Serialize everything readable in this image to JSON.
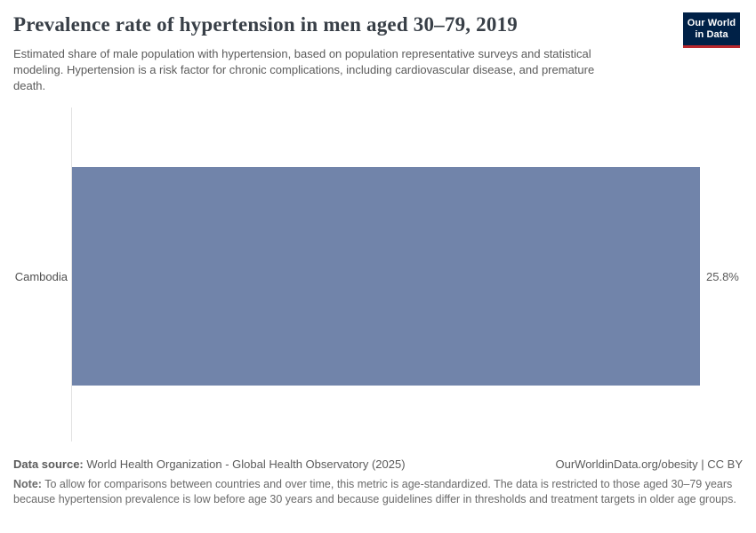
{
  "logo": {
    "line1": "Our World",
    "line2": "in Data",
    "background": "#002147",
    "stripe": "#b9282d"
  },
  "chart_data": {
    "type": "bar",
    "orientation": "horizontal",
    "title": "Prevalence rate of hypertension in men aged 30–79, 2019",
    "subtitle": "Estimated share of male population with hypertension, based on population representative surveys and statistical modeling. Hypertension is a risk factor for chronic complications, including cardiovascular disease, and premature death.",
    "categories": [
      "Cambodia"
    ],
    "values": [
      25.8
    ],
    "value_labels": [
      "25.8%"
    ],
    "unit": "%",
    "xlim": [
      0,
      25.8
    ],
    "grid": false,
    "legend": "none",
    "bar_color": "#7184aa",
    "axis_color": "#e2e2e2"
  },
  "footer": {
    "data_source_label": "Data source:",
    "data_source": "World Health Organization - Global Health Observatory (2025)",
    "link": "OurWorldinData.org/obesity | CC BY",
    "note_label": "Note:",
    "note": "To allow for comparisons between countries and over time, this metric is age-standardized. The data is restricted to those aged 30–79 years because hypertension prevalence is low before age 30 years and because guidelines differ in thresholds and treatment targets in older age groups."
  }
}
